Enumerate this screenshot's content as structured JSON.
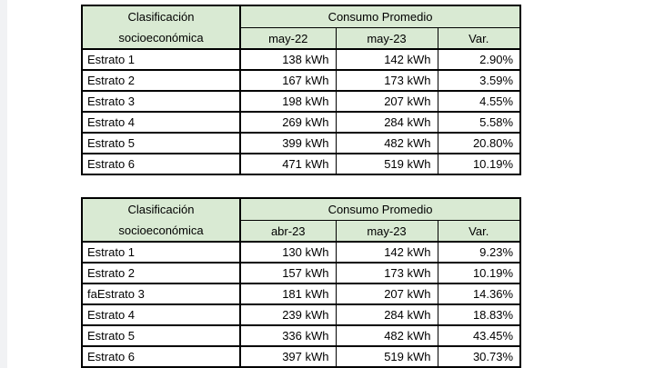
{
  "colors": {
    "header_bg": "#d9ead3",
    "border": "#000000",
    "text": "#000000",
    "page_bg": "#ffffff",
    "left_strip": "#f1f2f4"
  },
  "tables": [
    {
      "name": "consumo-promedio-anual",
      "header": {
        "classification_line1": "Clasificación",
        "classification_line2": "socioeconómica",
        "group_title": "Consumo Promedio",
        "columns": [
          "may-22",
          "may-23",
          "Var."
        ]
      },
      "rows": [
        [
          "Estrato 1",
          "138 kWh",
          "142 kWh",
          "2.90%"
        ],
        [
          "Estrato 2",
          "167 kWh",
          "173 kWh",
          "3.59%"
        ],
        [
          "Estrato 3",
          "198 kWh",
          "207 kWh",
          "4.55%"
        ],
        [
          "Estrato 4",
          "269 kWh",
          "284 kWh",
          "5.58%"
        ],
        [
          "Estrato 5",
          "399 kWh",
          "482 kWh",
          "20.80%"
        ],
        [
          "Estrato 6",
          "471 kWh",
          "519 kWh",
          "10.19%"
        ]
      ]
    },
    {
      "name": "consumo-promedio-mensual",
      "header": {
        "classification_line1": "Clasificación",
        "classification_line2": "socioeconómica",
        "group_title": "Consumo Promedio",
        "columns": [
          "abr-23",
          "may-23",
          "Var."
        ]
      },
      "rows": [
        [
          "Estrato 1",
          "130 kWh",
          "142 kWh",
          "9.23%"
        ],
        [
          "Estrato 2",
          "157 kWh",
          "173 kWh",
          "10.19%"
        ],
        [
          "faEstrato 3",
          "181 kWh",
          "207 kWh",
          "14.36%"
        ],
        [
          "Estrato 4",
          "239 kWh",
          "284 kWh",
          "18.83%"
        ],
        [
          "Estrato 5",
          "336 kWh",
          "482 kWh",
          "43.45%"
        ],
        [
          "Estrato 6",
          "397 kWh",
          "519 kWh",
          "30.73%"
        ]
      ]
    }
  ]
}
